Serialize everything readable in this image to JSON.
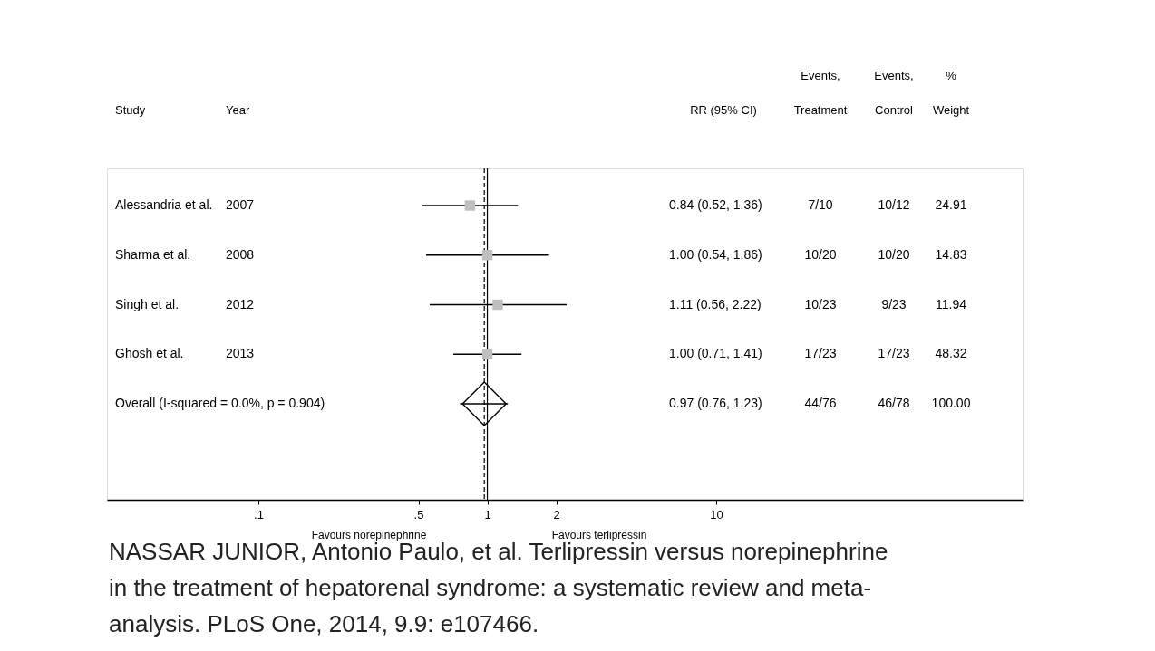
{
  "chart_data": {
    "type": "scatter",
    "categories": [
      "Alessandria et al.",
      "Sharma et al.",
      "Singh et al.",
      "Ghosh et al.",
      "Overall  (I-squared = 0.0%, p = 0.904)"
    ],
    "series": [
      {
        "marker": "square",
        "color": "#bfbfbf",
        "values": [
          0.84,
          1.0,
          1.11,
          1.0,
          null
        ],
        "errors": [
          [
            0.52,
            1.36
          ],
          [
            0.54,
            1.86
          ],
          [
            0.56,
            2.22
          ],
          [
            0.71,
            1.41
          ],
          null
        ]
      },
      {
        "marker": "diamond",
        "color": "#000000",
        "values": [
          null,
          null,
          null,
          null,
          0.97
        ],
        "errors": [
          null,
          null,
          null,
          null,
          [
            0.76,
            1.23
          ]
        ]
      }
    ],
    "orientation": "horizontal",
    "log": "x",
    "xlim": [
      0.0218,
      218
    ],
    "xticks": [
      {
        "value": 0.1,
        "label": ".1"
      },
      {
        "value": 0.5,
        "label": ".5"
      },
      1,
      2,
      10
    ],
    "ref_lines": [
      {
        "axis": "x",
        "value": 1,
        "color": "#000000",
        "line_style": "solid"
      },
      {
        "axis": "x",
        "value": 0.97,
        "color": "#000000",
        "line_style": "dashed"
      }
    ],
    "grid": false,
    "annotations": [
      "Study",
      "Year",
      "RR (95% CI)",
      "Events,",
      "Treatment",
      "Events,",
      "Control",
      "%",
      "Weight",
      "2007",
      "0.84 (0.52, 1.36)",
      "7/10",
      "10/12",
      "24.91",
      "2008",
      "1.00 (0.54, 1.86)",
      "10/20",
      "10/20",
      "14.83",
      "2012",
      "1.11 (0.56, 2.22)",
      "10/23",
      "9/23",
      "11.94",
      "2013",
      "1.00 (0.71, 1.41)",
      "17/23",
      "17/23",
      "48.32",
      "0.97 (0.76, 1.23)",
      "44/76",
      "46/78",
      "100.00",
      "Favours norepinephrine",
      "Favours terlipressin",
      "NASSAR JUNIOR, Antonio Paulo, et al. Terlipressin versus norepinephrine in the treatment of hepatorenal syndrome: a systematic review and meta-analysis. PLoS One, 2014, 9.9: e107466."
    ]
  }
}
